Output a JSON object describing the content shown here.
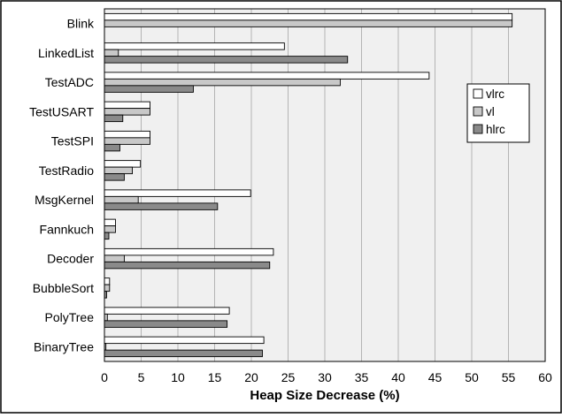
{
  "chart_data": {
    "type": "bar",
    "orientation": "horizontal",
    "title": "",
    "xlabel": "Heap Size Decrease (%)",
    "ylabel": "",
    "xlim": [
      0,
      60
    ],
    "x_ticks": [
      0,
      5,
      10,
      15,
      20,
      25,
      30,
      35,
      40,
      45,
      50,
      55,
      60
    ],
    "grid": true,
    "legend_position": "upper-right",
    "categories": [
      "Blink",
      "LinkedList",
      "TestADC",
      "TestUSART",
      "TestSPI",
      "TestRadio",
      "MsgKernel",
      "Fannkuch",
      "Decoder",
      "BubbleSort",
      "PolyTree",
      "BinaryTree"
    ],
    "series": [
      {
        "name": "vlrc",
        "color": "#ffffff",
        "values": [
          55.5,
          24.5,
          44.2,
          6.2,
          6.2,
          4.9,
          19.9,
          1.5,
          23.0,
          0.7,
          17.0,
          21.7
        ]
      },
      {
        "name": "vl",
        "color": "#c8c8c8",
        "values": [
          55.5,
          1.9,
          32.1,
          6.2,
          6.2,
          3.8,
          4.6,
          1.5,
          2.7,
          0.7,
          0.4,
          0.2
        ]
      },
      {
        "name": "hlrc",
        "color": "#8a8a8a",
        "values": [
          0,
          33.1,
          12.1,
          2.5,
          2.1,
          2.7,
          15.4,
          0.6,
          22.5,
          0.3,
          16.7,
          21.5
        ]
      }
    ],
    "plot_background": "#f0f0f0",
    "bar_border_color": "#000000",
    "grid_color": "#b4b4b4"
  }
}
